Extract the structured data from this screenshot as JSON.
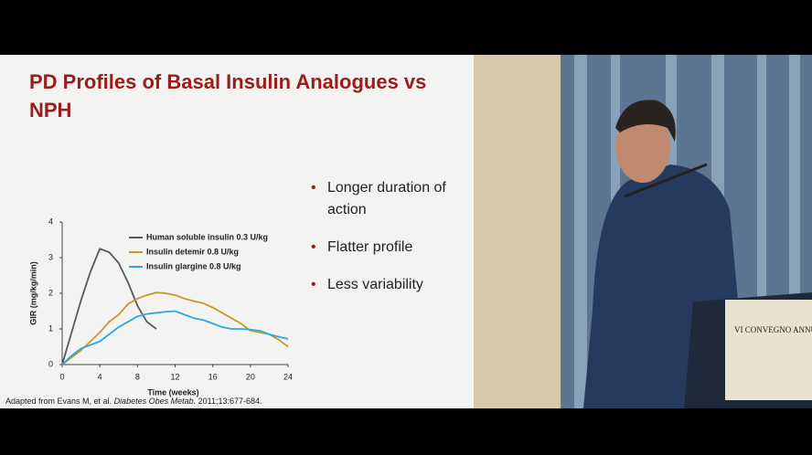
{
  "slide": {
    "title": "PD Profiles of Basal Insulin Analogues vs NPH",
    "bullets": [
      "Longer duration of action",
      "Flatter profile",
      "Less variability"
    ],
    "citation": {
      "before": "Adapted from Evans M, et al. ",
      "journal": "Diabetes Obes Metab.",
      "after": " 2011;13:677-684."
    }
  },
  "photo": {
    "sign": "VI CONVEGNO ANNUA"
  },
  "chart_data": {
    "type": "line",
    "x_label": "Time (weeks)",
    "y_label": "GIR (mg/kg/min)",
    "x": [
      0,
      1,
      2,
      3,
      4,
      5,
      6,
      7,
      8,
      9,
      10,
      11,
      12,
      13,
      14,
      15,
      16,
      17,
      18,
      19,
      20,
      21,
      22,
      23,
      24
    ],
    "series": [
      {
        "name": "Human soluble insulin 0.3 U/kg",
        "color": "#595959",
        "values": [
          0,
          0.9,
          1.8,
          2.6,
          3.25,
          3.15,
          2.85,
          2.3,
          1.65,
          1.2,
          1.0,
          null,
          null,
          null,
          null,
          null,
          null,
          null,
          null,
          null,
          null,
          null,
          null,
          null,
          null
        ]
      },
      {
        "name": "Insulin detemir 0.8 U/kg",
        "color": "#c09a2a",
        "values": [
          0,
          0.2,
          0.4,
          0.65,
          0.9,
          1.2,
          1.4,
          1.7,
          1.85,
          1.95,
          2.02,
          2.0,
          1.95,
          1.85,
          1.78,
          1.72,
          1.6,
          1.45,
          1.3,
          1.15,
          0.95,
          0.9,
          0.85,
          0.7,
          0.5
        ]
      },
      {
        "name": "Insulin glargine 0.8 U/kg",
        "color": "#29abe2",
        "values": [
          0,
          0.25,
          0.45,
          0.55,
          0.65,
          0.85,
          1.05,
          1.2,
          1.35,
          1.42,
          1.45,
          1.48,
          1.5,
          1.4,
          1.3,
          1.25,
          1.15,
          1.05,
          1.0,
          1.0,
          0.98,
          0.95,
          0.85,
          0.78,
          0.72
        ]
      }
    ],
    "xlim": [
      0,
      24
    ],
    "xticks": [
      0,
      4,
      8,
      12,
      16,
      20,
      24
    ],
    "ylim": [
      0,
      4
    ],
    "yticks": [
      0,
      1,
      2,
      3,
      4
    ]
  }
}
